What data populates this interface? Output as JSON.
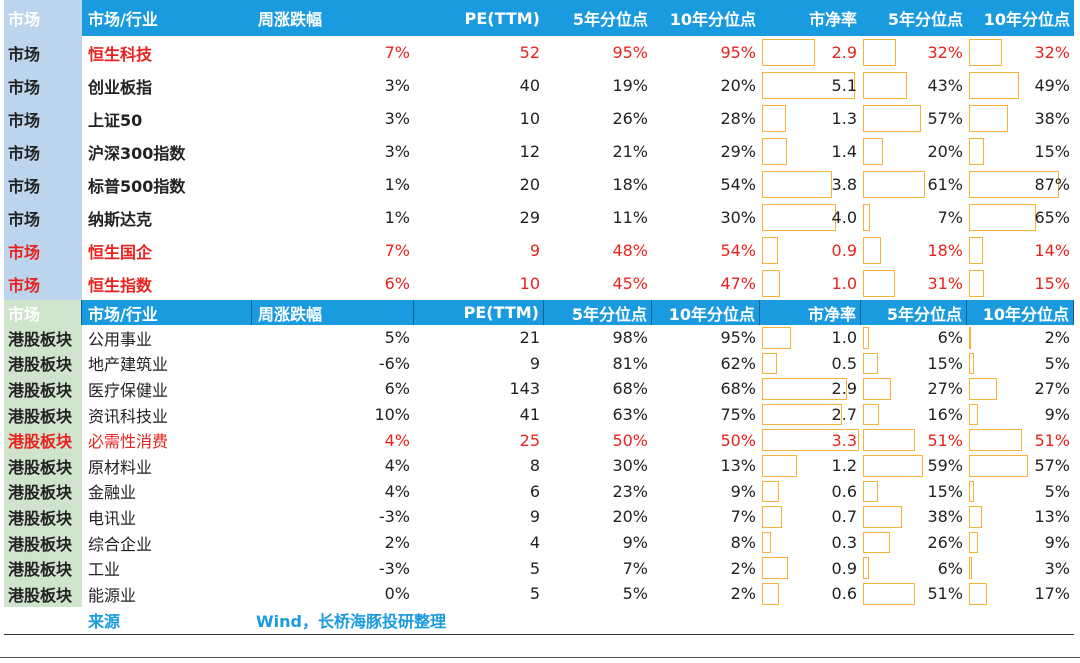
{
  "header": [
    "市场",
    "市场/行业",
    "周涨跌幅",
    "PE(TTM)",
    "5年分位点",
    "10年分位点",
    "市净率",
    "5年分位点",
    "10年分位点"
  ],
  "colors": {
    "header_bg": "#1a9be0",
    "market_col": "#bcd5ec",
    "hk_col": "#cfe3cd",
    "highlight": "#e8231f",
    "bar_border": "#f5b33a"
  },
  "table1": [
    {
      "cat": "市场",
      "name": "恒生科技",
      "chg": "7%",
      "pe": "52",
      "pe5": "95%",
      "pe10": "95%",
      "pb": "2.9",
      "pb5": "32%",
      "pb10": "32%",
      "red": true,
      "catRed": false,
      "pb_f": 0.55,
      "pb5_f": 0.32,
      "pb10_f": 0.32
    },
    {
      "cat": "市场",
      "name": "创业板指",
      "chg": "3%",
      "pe": "40",
      "pe5": "19%",
      "pe10": "20%",
      "pb": "5.1",
      "pb5": "43%",
      "pb10": "49%",
      "red": false,
      "catRed": false,
      "pb_f": 0.96,
      "pb5_f": 0.43,
      "pb10_f": 0.49
    },
    {
      "cat": "市场",
      "name": "上证50",
      "chg": "3%",
      "pe": "10",
      "pe5": "26%",
      "pe10": "28%",
      "pb": "1.3",
      "pb5": "57%",
      "pb10": "38%",
      "red": false,
      "catRed": false,
      "pb_f": 0.25,
      "pb5_f": 0.57,
      "pb10_f": 0.38
    },
    {
      "cat": "市场",
      "name": "沪深300指数",
      "chg": "3%",
      "pe": "12",
      "pe5": "21%",
      "pe10": "29%",
      "pb": "1.4",
      "pb5": "20%",
      "pb10": "15%",
      "red": false,
      "catRed": false,
      "pb_f": 0.26,
      "pb5_f": 0.2,
      "pb10_f": 0.15
    },
    {
      "cat": "市场",
      "name": "标普500指数",
      "chg": "1%",
      "pe": "20",
      "pe5": "18%",
      "pe10": "54%",
      "pb": "3.8",
      "pb5": "61%",
      "pb10": "87%",
      "red": false,
      "catRed": false,
      "pb_f": 0.72,
      "pb5_f": 0.61,
      "pb10_f": 0.87
    },
    {
      "cat": "市场",
      "name": "纳斯达克",
      "chg": "1%",
      "pe": "29",
      "pe5": "11%",
      "pe10": "30%",
      "pb": "4.0",
      "pb5": "7%",
      "pb10": "65%",
      "red": false,
      "catRed": false,
      "pb_f": 0.76,
      "pb5_f": 0.07,
      "pb10_f": 0.65
    },
    {
      "cat": "市场",
      "name": "恒生国企",
      "chg": "7%",
      "pe": "9",
      "pe5": "48%",
      "pe10": "54%",
      "pb": "0.9",
      "pb5": "18%",
      "pb10": "14%",
      "red": true,
      "catRed": true,
      "pb_f": 0.17,
      "pb5_f": 0.18,
      "pb10_f": 0.14
    },
    {
      "cat": "市场",
      "name": "恒生指数",
      "chg": "6%",
      "pe": "10",
      "pe5": "45%",
      "pe10": "47%",
      "pb": "1.0",
      "pb5": "31%",
      "pb10": "15%",
      "red": true,
      "catRed": true,
      "pb_f": 0.19,
      "pb5_f": 0.31,
      "pb10_f": 0.15
    }
  ],
  "table2": [
    {
      "cat": "港股板块",
      "name": "公用事业",
      "chg": "5%",
      "pe": "21",
      "pe5": "98%",
      "pe10": "95%",
      "pb": "1.0",
      "pb5": "6%",
      "pb10": "2%",
      "red": false,
      "pb_f": 0.3,
      "pb5_f": 0.06,
      "pb10_f": 0.02
    },
    {
      "cat": "港股板块",
      "name": "地产建筑业",
      "chg": "-6%",
      "pe": "9",
      "pe5": "81%",
      "pe10": "62%",
      "pb": "0.5",
      "pb5": "15%",
      "pb10": "5%",
      "red": false,
      "pb_f": 0.15,
      "pb5_f": 0.15,
      "pb10_f": 0.05
    },
    {
      "cat": "港股板块",
      "name": "医疗保健业",
      "chg": "6%",
      "pe": "143",
      "pe5": "68%",
      "pe10": "68%",
      "pb": "2.9",
      "pb5": "27%",
      "pb10": "27%",
      "red": false,
      "pb_f": 0.88,
      "pb5_f": 0.27,
      "pb10_f": 0.27
    },
    {
      "cat": "港股板块",
      "name": "资讯科技业",
      "chg": "10%",
      "pe": "41",
      "pe5": "63%",
      "pe10": "75%",
      "pb": "2.7",
      "pb5": "16%",
      "pb10": "9%",
      "red": false,
      "pb_f": 0.82,
      "pb5_f": 0.16,
      "pb10_f": 0.09
    },
    {
      "cat": "港股板块",
      "name": "必需性消费",
      "chg": "4%",
      "pe": "25",
      "pe5": "50%",
      "pe10": "50%",
      "pb": "3.3",
      "pb5": "51%",
      "pb10": "51%",
      "red": true,
      "pb_f": 1.0,
      "pb5_f": 0.51,
      "pb10_f": 0.51
    },
    {
      "cat": "港股板块",
      "name": "原材料业",
      "chg": "4%",
      "pe": "8",
      "pe5": "30%",
      "pe10": "13%",
      "pb": "1.2",
      "pb5": "59%",
      "pb10": "57%",
      "red": false,
      "pb_f": 0.36,
      "pb5_f": 0.59,
      "pb10_f": 0.57
    },
    {
      "cat": "港股板块",
      "name": "金融业",
      "chg": "4%",
      "pe": "6",
      "pe5": "23%",
      "pe10": "9%",
      "pb": "0.6",
      "pb5": "15%",
      "pb10": "5%",
      "red": false,
      "pb_f": 0.18,
      "pb5_f": 0.15,
      "pb10_f": 0.05
    },
    {
      "cat": "港股板块",
      "name": "电讯业",
      "chg": "-3%",
      "pe": "9",
      "pe5": "20%",
      "pe10": "7%",
      "pb": "0.7",
      "pb5": "38%",
      "pb10": "13%",
      "red": false,
      "pb_f": 0.21,
      "pb5_f": 0.38,
      "pb10_f": 0.13
    },
    {
      "cat": "港股板块",
      "name": "综合企业",
      "chg": "2%",
      "pe": "4",
      "pe5": "9%",
      "pe10": "8%",
      "pb": "0.3",
      "pb5": "26%",
      "pb10": "9%",
      "red": false,
      "pb_f": 0.09,
      "pb5_f": 0.26,
      "pb10_f": 0.09
    },
    {
      "cat": "港股板块",
      "name": "工业",
      "chg": "-3%",
      "pe": "5",
      "pe5": "7%",
      "pe10": "2%",
      "pb": "0.9",
      "pb5": "6%",
      "pb10": "3%",
      "red": false,
      "pb_f": 0.27,
      "pb5_f": 0.06,
      "pb10_f": 0.03
    },
    {
      "cat": "港股板块",
      "name": "能源业",
      "chg": "0%",
      "pe": "5",
      "pe5": "5%",
      "pe10": "2%",
      "pb": "0.6",
      "pb5": "51%",
      "pb10": "17%",
      "red": false,
      "pb_f": 0.18,
      "pb5_f": 0.51,
      "pb10_f": 0.17
    }
  ],
  "source": {
    "label": "来源",
    "text": "Wind，长桥海豚投研整理"
  }
}
